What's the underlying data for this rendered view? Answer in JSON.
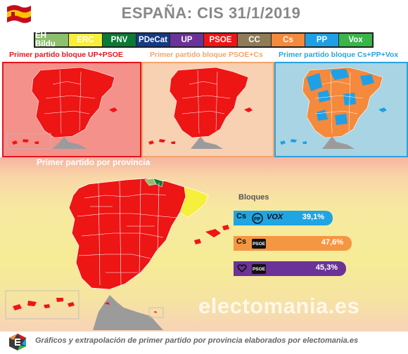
{
  "title": "ESPAÑA: CIS 31/1/2019",
  "legend": [
    {
      "label": "EH Bildu",
      "color": "#8ebf6d"
    },
    {
      "label": "ERC",
      "color": "#f6ef3b"
    },
    {
      "label": "PNV",
      "color": "#0b7a34"
    },
    {
      "label": "PDeCat",
      "color": "#153a86"
    },
    {
      "label": "UP",
      "color": "#6b3398"
    },
    {
      "label": "PSOE",
      "color": "#ee1515"
    },
    {
      "label": "CC",
      "color": "#8f7b57"
    },
    {
      "label": "Cs",
      "color": "#f5893c"
    },
    {
      "label": "PP",
      "color": "#1fa0e6"
    },
    {
      "label": "Vox",
      "color": "#39b54a"
    }
  ],
  "panels": [
    {
      "title": "Primer partido bloque UP+PSOE",
      "title_color": "#e8141e",
      "border": "#e8141e",
      "bg": "#f3918a"
    },
    {
      "title": "Primer partido bloque PSOE+Cs",
      "title_color": "#f4a46a",
      "border": "#f4a46a",
      "bg": "#f8d0b2"
    },
    {
      "title": "Primer partido bloque Cs+PP+Vox",
      "title_color": "#2aa3de",
      "border": "#2aa3de",
      "bg": "#a9d4e3"
    }
  ],
  "bottom_title": "Primer partido por provincia",
  "watermark": "electomania.es",
  "bloques": {
    "label": "Bloques",
    "items": [
      {
        "logos": [
          "Cs",
          "PP",
          "VOX"
        ],
        "value": "39,1%",
        "color": "#1fa5e4"
      },
      {
        "logos": [
          "Cs",
          "PSOE"
        ],
        "value": "47,6%",
        "color": "#f59643"
      },
      {
        "logos": [
          "heart",
          "PSOE"
        ],
        "value": "45,3%",
        "color": "#6b3398"
      }
    ]
  },
  "footer": "Gráficos y extrapolación de primer partido por provincia elaborados por electomania.es"
}
